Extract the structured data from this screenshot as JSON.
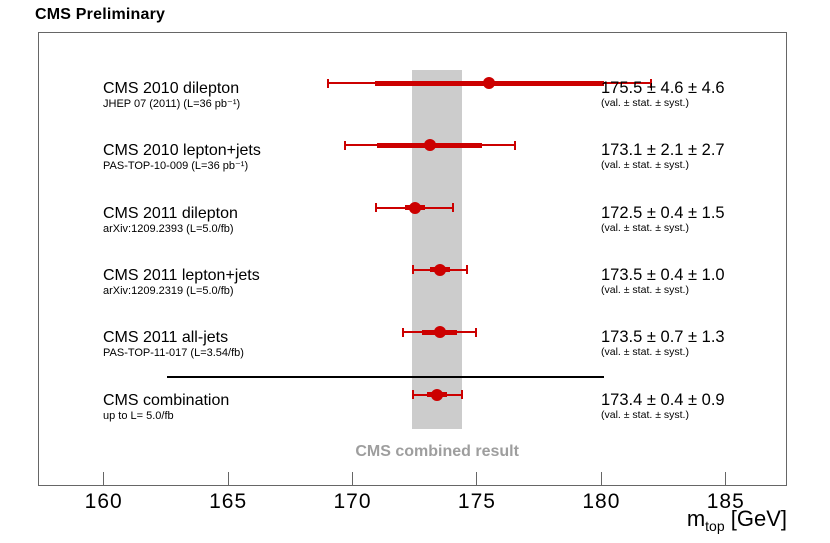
{
  "title": "CMS Preliminary",
  "chart_data": {
    "type": "scatter",
    "title": "CMS Preliminary",
    "xlabel": {
      "main": "m",
      "sub": "top",
      "unit": " [GeV]"
    },
    "xlim": [
      157.4,
      187.5
    ],
    "xticks": [
      "160",
      "165",
      "170",
      "175",
      "180",
      "185"
    ],
    "grid": false,
    "marker_color": "#cc0000",
    "band": {
      "label": "CMS combined result",
      "xmin": 172.4,
      "xmax": 174.4,
      "color": "#cccccc",
      "label_color": "#9e9e9e"
    },
    "note_label": "(val. ± stat. ± syst.)",
    "measurements": [
      {
        "label": "CMS 2010 dilepton",
        "reference": "JHEP 07 (2011) (L=36 pb⁻¹)",
        "value": 175.5,
        "stat": 4.6,
        "syst": 4.6,
        "total": 6.5,
        "display": "175.5 ± 4.6 ± 4.6"
      },
      {
        "label": "CMS 2010 lepton+jets",
        "reference": "PAS-TOP-10-009 (L=36 pb⁻¹)",
        "value": 173.1,
        "stat": 2.1,
        "syst": 2.7,
        "total": 3.42,
        "display": "173.1 ± 2.1 ± 2.7"
      },
      {
        "label": "CMS 2011 dilepton",
        "reference": "arXiv:1209.2393 (L=5.0/fb)",
        "value": 172.5,
        "stat": 0.4,
        "syst": 1.5,
        "total": 1.55,
        "display": "172.5 ± 0.4 ± 1.5"
      },
      {
        "label": "CMS 2011 lepton+jets",
        "reference": "arXiv:1209.2319 (L=5.0/fb)",
        "value": 173.5,
        "stat": 0.4,
        "syst": 1.0,
        "total": 1.08,
        "display": "173.5 ± 0.4 ± 1.0"
      },
      {
        "label": "CMS 2011 all-jets",
        "reference": "PAS-TOP-11-017 (L=3.54/fb)",
        "value": 173.5,
        "stat": 0.7,
        "syst": 1.3,
        "total": 1.48,
        "display": "173.5 ± 0.7 ± 1.3"
      },
      {
        "label": "CMS combination",
        "reference": "up to L= 5.0/fb",
        "value": 173.4,
        "stat": 0.4,
        "syst": 0.9,
        "total": 0.98,
        "display": "173.4 ± 0.4 ± 0.9"
      }
    ]
  }
}
